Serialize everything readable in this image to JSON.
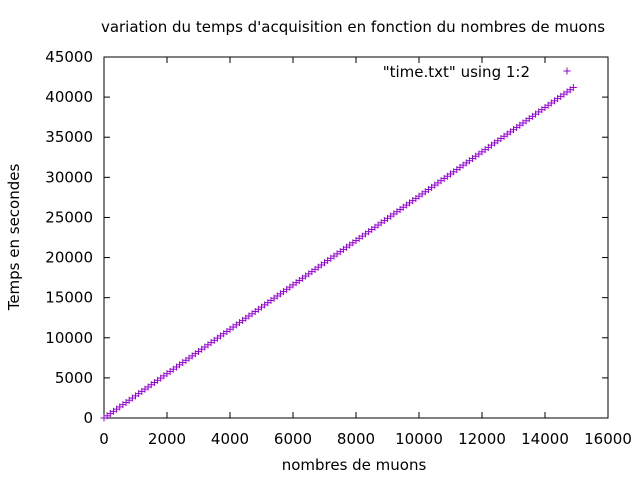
{
  "chart_data": {
    "type": "scatter",
    "title": "variation du temps d'acquisition en fonction du nombres de muons",
    "xlabel": "nombres de muons",
    "ylabel": "Temps en secondes",
    "xlim": [
      0,
      16000
    ],
    "ylim": [
      0,
      45000
    ],
    "xticks": [
      0,
      2000,
      4000,
      6000,
      8000,
      10000,
      12000,
      14000,
      16000
    ],
    "yticks": [
      0,
      5000,
      10000,
      15000,
      20000,
      25000,
      30000,
      35000,
      40000,
      45000
    ],
    "grid": false,
    "legend_position": "top-right",
    "marker": "+",
    "point_color": "#9400D3",
    "series": [
      {
        "name": "\"time.txt\" using 1:2",
        "x_start": 0,
        "x_step": 100,
        "x_end": 14900,
        "slope": 2.765,
        "intercept": 0
      }
    ]
  }
}
